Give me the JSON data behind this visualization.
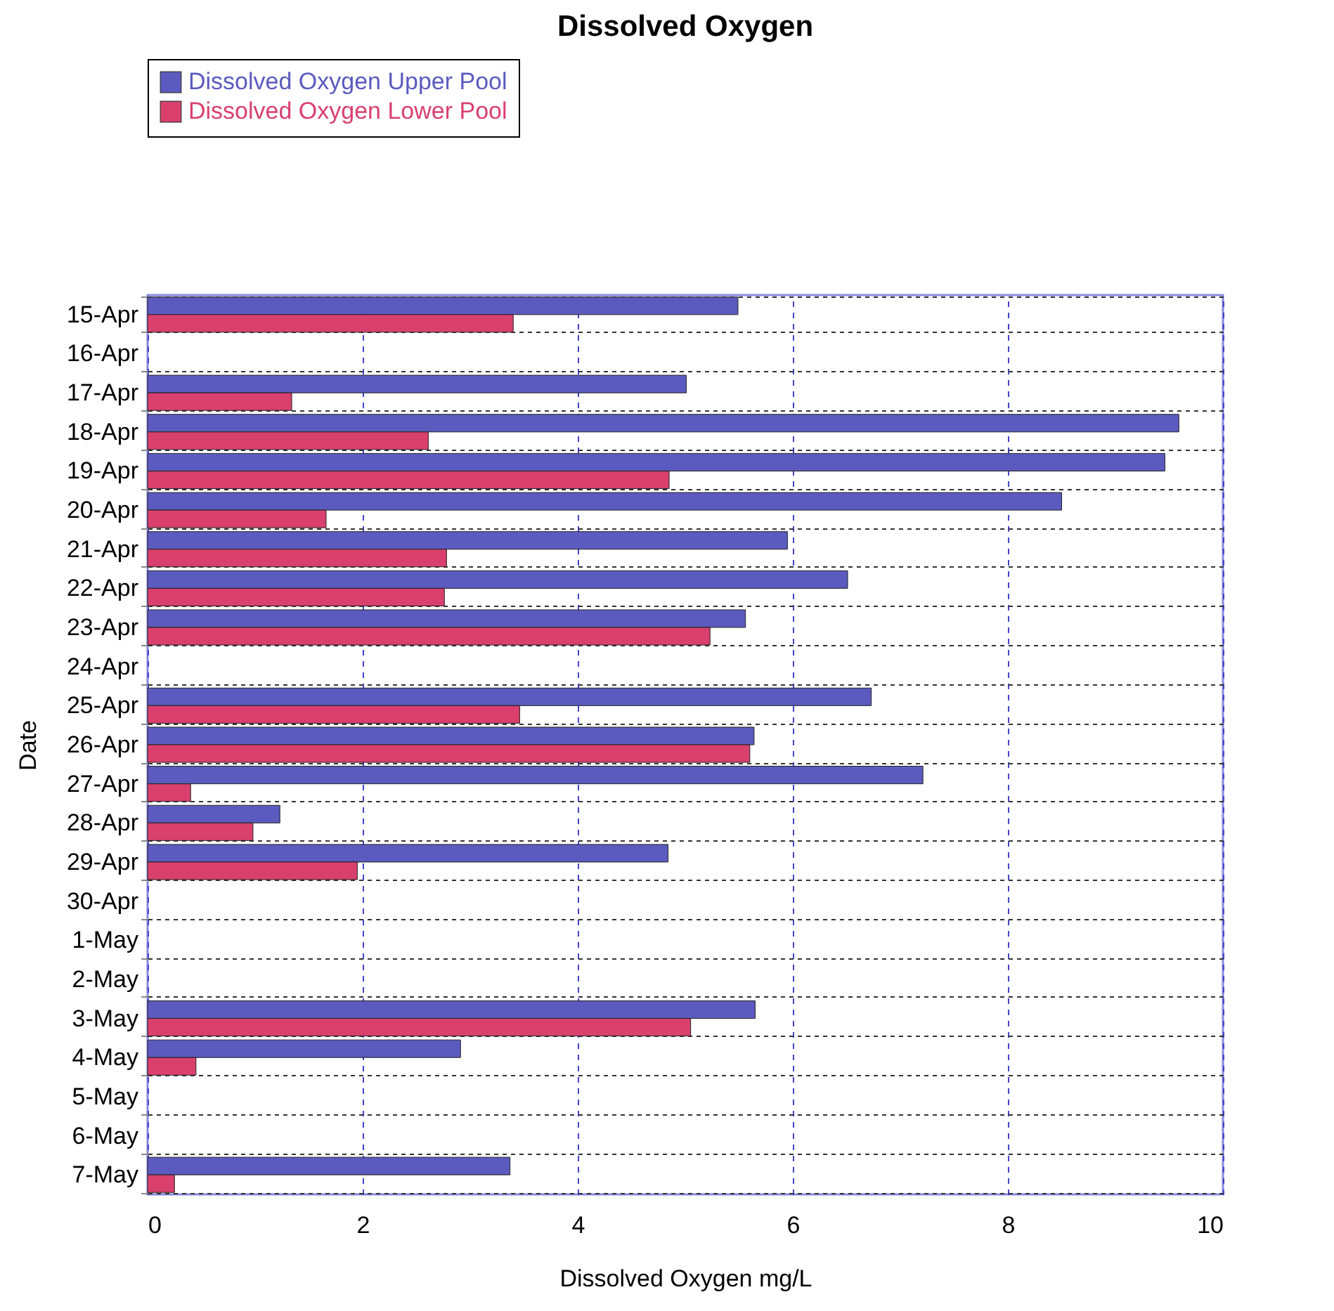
{
  "chart_data": {
    "type": "bar",
    "orientation": "horizontal",
    "title": "Dissolved Oxygen",
    "xlabel": "Dissolved Oxygen mg/L",
    "ylabel": "Date",
    "categories": [
      "15-Apr",
      "16-Apr",
      "17-Apr",
      "18-Apr",
      "19-Apr",
      "20-Apr",
      "21-Apr",
      "22-Apr",
      "23-Apr",
      "24-Apr",
      "25-Apr",
      "26-Apr",
      "27-Apr",
      "28-Apr",
      "29-Apr",
      "30-Apr",
      "1-May",
      "2-May",
      "3-May",
      "4-May",
      "5-May",
      "6-May",
      "7-May"
    ],
    "series": [
      {
        "name": "Dissolved Oxygen Upper Pool",
        "color": "#5b5bbf",
        "values": [
          5.49,
          null,
          5.01,
          9.59,
          9.46,
          8.5,
          5.95,
          6.51,
          5.56,
          null,
          6.73,
          5.64,
          7.21,
          1.23,
          4.84,
          null,
          null,
          null,
          5.65,
          2.91,
          null,
          null,
          3.37
        ]
      },
      {
        "name": "Dissolved Oxygen Lower Pool",
        "color": "#d9406e",
        "values": [
          3.4,
          null,
          1.34,
          2.61,
          4.85,
          1.66,
          2.78,
          2.76,
          5.23,
          null,
          3.46,
          5.6,
          0.4,
          0.98,
          1.95,
          null,
          null,
          null,
          5.05,
          0.45,
          null,
          null,
          0.25
        ]
      }
    ],
    "xlim": [
      0,
      10
    ],
    "xticks": [
      0,
      2,
      4,
      6,
      8,
      10
    ],
    "grid": true,
    "legend": "top left"
  }
}
